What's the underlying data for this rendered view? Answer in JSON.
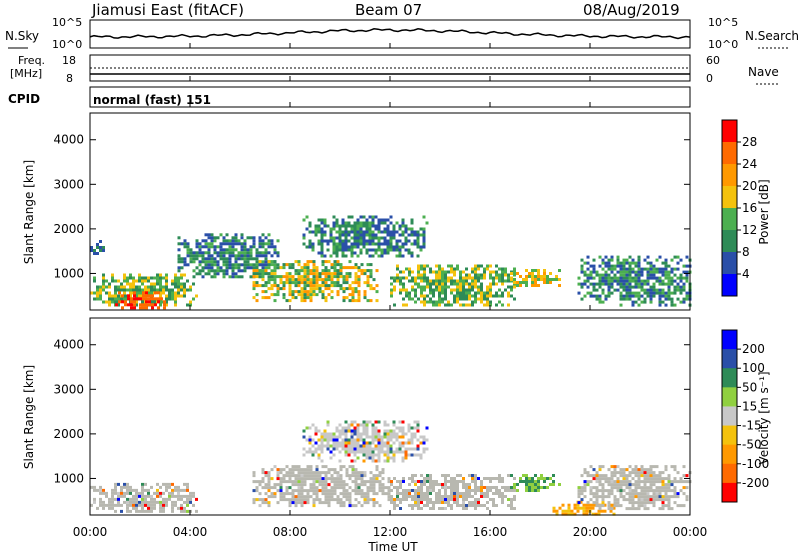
{
  "header": {
    "station": "Jiamusi East (fitACF)",
    "beam": "Beam 07",
    "date": "08/Aug/2019"
  },
  "noise_panel": {
    "left_label": "N.Sky",
    "right_label": "N.Search",
    "left_ticks": [
      "10^5",
      "10^0"
    ],
    "right_ticks": [
      "10^5",
      "10^0"
    ]
  },
  "freq_panel": {
    "left_label_top": "Freq.",
    "left_label_bottom": "[MHz]",
    "right_label": "Nave",
    "left_ticks": [
      "18",
      "8"
    ],
    "right_ticks": [
      "60",
      "0"
    ]
  },
  "cpid_panel": {
    "label": "CPID",
    "mode": "normal (fast) 151"
  },
  "time_axis": {
    "title": "Time UT",
    "ticks": [
      "00:00",
      "04:00",
      "08:00",
      "12:00",
      "16:00",
      "20:00",
      "00:00"
    ]
  },
  "colors": {
    "power_scale": [
      "#0000ff",
      "#2a4fa8",
      "#2e8b57",
      "#4caf50",
      "#f4c20d",
      "#ff9900",
      "#ff6a00",
      "#ff0000"
    ],
    "velocity_scale": [
      "#ff0000",
      "#ff6a00",
      "#ff9900",
      "#f4c20d",
      "#c8c8c8",
      "#90d040",
      "#2e8b57",
      "#2a4fa8",
      "#0000ff"
    ],
    "ground_scatter": "#b8b8b0"
  },
  "chart_data": [
    {
      "type": "heatmap",
      "title": "",
      "xlabel": "",
      "ylabel": "Slant Range [km]",
      "xlim": [
        0,
        24
      ],
      "ylim": [
        180,
        4600
      ],
      "y_ticks": [
        "1000",
        "2000",
        "3000",
        "4000"
      ],
      "colorbar": {
        "label": "Power [dB]",
        "ticks": [
          "28",
          "24",
          "20",
          "16",
          "12",
          "8",
          "4"
        ]
      },
      "echo_regions": [
        {
          "x": [
            0.0,
            4.3
          ],
          "range": [
            300,
            1000
          ],
          "level": "power 8-20"
        },
        {
          "x": [
            1.0,
            3.0
          ],
          "range": [
            250,
            600
          ],
          "level": "power 24-30"
        },
        {
          "x": [
            0.0,
            0.5
          ],
          "range": [
            1450,
            1750
          ],
          "level": "power 4-12"
        },
        {
          "x": [
            3.5,
            7.5
          ],
          "range": [
            900,
            1900
          ],
          "level": "power 4-14"
        },
        {
          "x": [
            6.5,
            11.5
          ],
          "range": [
            400,
            1300
          ],
          "level": "power 8-24"
        },
        {
          "x": [
            8.5,
            13.5
          ],
          "range": [
            1400,
            2300
          ],
          "level": "power 4-14"
        },
        {
          "x": [
            12.0,
            17.0
          ],
          "range": [
            300,
            1200
          ],
          "level": "power 8-20"
        },
        {
          "x": [
            16.8,
            18.8
          ],
          "range": [
            750,
            1100
          ],
          "level": "power 12-24"
        },
        {
          "x": [
            19.5,
            24.0
          ],
          "range": [
            300,
            1400
          ],
          "level": "power 4-16"
        }
      ]
    },
    {
      "type": "heatmap",
      "title": "",
      "xlabel": "Time UT",
      "ylabel": "Slant Range [km]",
      "xlim": [
        0,
        24
      ],
      "ylim": [
        180,
        4600
      ],
      "y_ticks": [
        "1000",
        "2000",
        "3000",
        "4000"
      ],
      "colorbar": {
        "label": "Velocity [m s⁻¹]",
        "ticks": [
          "200",
          "100",
          "50",
          "15",
          "-15",
          "-50",
          "-100",
          "-200"
        ]
      },
      "echo_regions": [
        {
          "x": [
            0.0,
            4.3
          ],
          "range": [
            250,
            900
          ],
          "level": "ground scatter"
        },
        {
          "x": [
            6.5,
            12.0
          ],
          "range": [
            400,
            1300
          ],
          "level": "ground scatter"
        },
        {
          "x": [
            8.5,
            13.5
          ],
          "range": [
            1400,
            2300
          ],
          "level": "velocity -15 to 15"
        },
        {
          "x": [
            12.0,
            17.0
          ],
          "range": [
            300,
            1100
          ],
          "level": "ground scatter"
        },
        {
          "x": [
            16.8,
            18.8
          ],
          "range": [
            750,
            1100
          ],
          "level": "velocity 15 to 100"
        },
        {
          "x": [
            18.5,
            21.0
          ],
          "range": [
            200,
            500
          ],
          "level": "velocity -50 to -15"
        },
        {
          "x": [
            19.5,
            24.0
          ],
          "range": [
            300,
            1300
          ],
          "level": "ground scatter"
        }
      ]
    }
  ]
}
